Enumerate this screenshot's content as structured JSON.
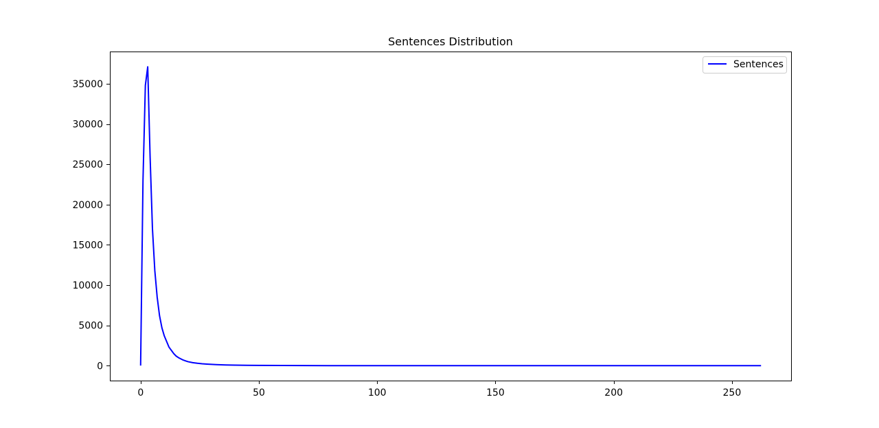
{
  "chart_data": {
    "type": "line",
    "title": "Sentences Distribution",
    "xlabel": "",
    "ylabel": "",
    "xlim": [
      -13,
      275
    ],
    "ylim": [
      -1850,
      39000
    ],
    "x_ticks": [
      0,
      50,
      100,
      150,
      200,
      250
    ],
    "x_tick_labels": [
      "0",
      "50",
      "100",
      "150",
      "200",
      "250"
    ],
    "y_ticks": [
      0,
      5000,
      10000,
      15000,
      20000,
      25000,
      30000,
      35000
    ],
    "y_tick_labels": [
      "0",
      "5000",
      "10000",
      "15000",
      "20000",
      "25000",
      "30000",
      "35000"
    ],
    "grid": false,
    "legend_position": "upper right",
    "series": [
      {
        "name": "Sentences",
        "color": "#0000ff",
        "x": [
          0,
          1,
          2,
          3,
          4,
          5,
          6,
          7,
          8,
          9,
          10,
          11,
          12,
          13,
          14,
          15,
          16,
          17,
          18,
          19,
          20,
          22,
          24,
          26,
          28,
          30,
          32,
          34,
          36,
          38,
          40,
          45,
          50,
          60,
          70,
          80,
          90,
          100,
          120,
          140,
          160,
          180,
          200,
          220,
          240,
          262
        ],
        "values": [
          100,
          23000,
          34800,
          37100,
          26000,
          17000,
          11800,
          8500,
          6200,
          4700,
          3700,
          3000,
          2300,
          1900,
          1500,
          1200,
          1000,
          850,
          700,
          600,
          500,
          380,
          300,
          240,
          200,
          160,
          130,
          110,
          95,
          80,
          70,
          50,
          40,
          25,
          15,
          10,
          8,
          5,
          3,
          2,
          2,
          1,
          1,
          1,
          1,
          1
        ]
      }
    ]
  }
}
